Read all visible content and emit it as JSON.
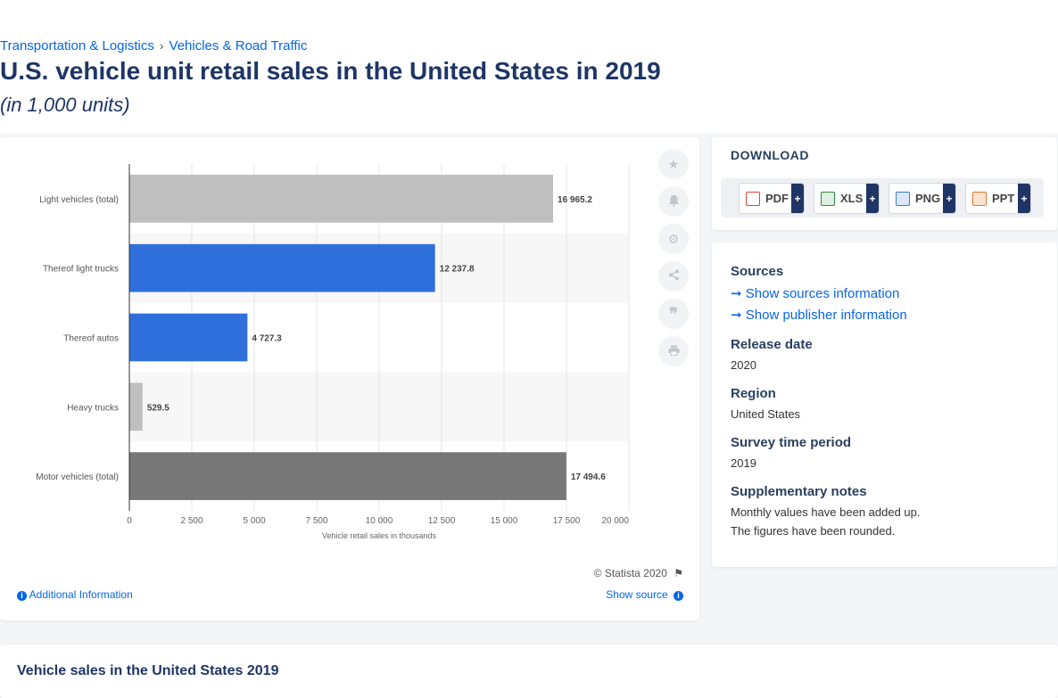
{
  "breadcrumb": {
    "items": [
      "Transportation & Logistics",
      "Vehicles & Road Traffic"
    ],
    "separator": "›"
  },
  "page": {
    "title": "U.S. vehicle unit retail sales in the United States in 2019",
    "subtitle": "(in 1,000 units)"
  },
  "chart_data": {
    "type": "bar",
    "orientation": "horizontal",
    "categories": [
      "Light vehicles (total)",
      "Thereof light trucks",
      "Thereof autos",
      "Heavy trucks",
      "Motor vehicles (total)"
    ],
    "values": [
      16965.2,
      12237.8,
      4727.3,
      529.5,
      17494.6
    ],
    "value_labels": [
      "16 965.2",
      "12 237.8",
      "4 727.3",
      "529.5",
      "17 494.6"
    ],
    "bar_colors": [
      "#bfbfbf",
      "#2f6fdb",
      "#2f6fdb",
      "#bfbfbf",
      "#777777"
    ],
    "xlabel": "Vehicle retail sales in thousands",
    "xlim": [
      0,
      20000
    ],
    "xticks": [
      0,
      2500,
      5000,
      7500,
      10000,
      12500,
      15000,
      17500,
      20000
    ],
    "xtick_labels": [
      "0",
      "2 500",
      "5 000",
      "7 500",
      "10 000",
      "12 500",
      "15 000",
      "17 500",
      "20 000"
    ],
    "grid": true
  },
  "chart_footer": {
    "credit": "© Statista 2020",
    "additional_info": "Additional Information",
    "show_source": "Show source"
  },
  "side_tools": [
    "star-icon",
    "bell-icon",
    "gear-icon",
    "share-icon",
    "quote-icon",
    "print-icon"
  ],
  "download": {
    "title": "DOWNLOAD",
    "buttons": [
      {
        "label": "PDF",
        "plus": "+",
        "icon_color": "#e0413a"
      },
      {
        "label": "XLS",
        "plus": "+",
        "icon_color": "#2d8a3e"
      },
      {
        "label": "PNG",
        "plus": "+",
        "icon_color": "#3a7bd5"
      },
      {
        "label": "PPT",
        "plus": "+",
        "icon_color": "#e8742a"
      }
    ]
  },
  "info": {
    "sources_heading": "Sources",
    "show_sources": "Show sources information",
    "show_publisher": "Show publisher information",
    "release_date_heading": "Release date",
    "release_date": "2020",
    "region_heading": "Region",
    "region": "United States",
    "survey_heading": "Survey time period",
    "survey": "2019",
    "notes_heading": "Supplementary notes",
    "notes_line1": "Monthly values have been added up.",
    "notes_line2": "The figures have been rounded."
  },
  "bottom": {
    "title": "Vehicle sales in the United States 2019"
  },
  "colors": {
    "accent": "#0666e5",
    "title": "#1f3566",
    "bar_blue": "#2f6fdb"
  }
}
